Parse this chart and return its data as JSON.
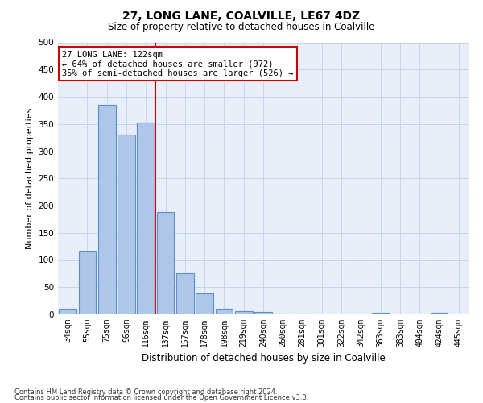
{
  "title": "27, LONG LANE, COALVILLE, LE67 4DZ",
  "subtitle": "Size of property relative to detached houses in Coalville",
  "xlabel": "Distribution of detached houses by size in Coalville",
  "ylabel": "Number of detached properties",
  "bar_color": "#aec6e8",
  "bar_edge_color": "#5b8fc9",
  "background_color": "#e8eef8",
  "categories": [
    "34sqm",
    "55sqm",
    "75sqm",
    "96sqm",
    "116sqm",
    "137sqm",
    "157sqm",
    "178sqm",
    "198sqm",
    "219sqm",
    "240sqm",
    "260sqm",
    "281sqm",
    "301sqm",
    "322sqm",
    "342sqm",
    "363sqm",
    "383sqm",
    "404sqm",
    "424sqm",
    "445sqm"
  ],
  "values": [
    10,
    115,
    385,
    330,
    352,
    188,
    75,
    38,
    10,
    6,
    4,
    1,
    1,
    0,
    0,
    0,
    3,
    0,
    0,
    3,
    0
  ],
  "ylim": [
    0,
    500
  ],
  "yticks": [
    0,
    50,
    100,
    150,
    200,
    250,
    300,
    350,
    400,
    450,
    500
  ],
  "vline_x": 4.5,
  "vline_color": "#cc0000",
  "annotation_text": "27 LONG LANE: 122sqm\n← 64% of detached houses are smaller (972)\n35% of semi-detached houses are larger (526) →",
  "annotation_box_color": "#ffffff",
  "annotation_box_edge": "#cc0000",
  "footer1": "Contains HM Land Registry data © Crown copyright and database right 2024.",
  "footer2": "Contains public sector information licensed under the Open Government Licence v3.0."
}
